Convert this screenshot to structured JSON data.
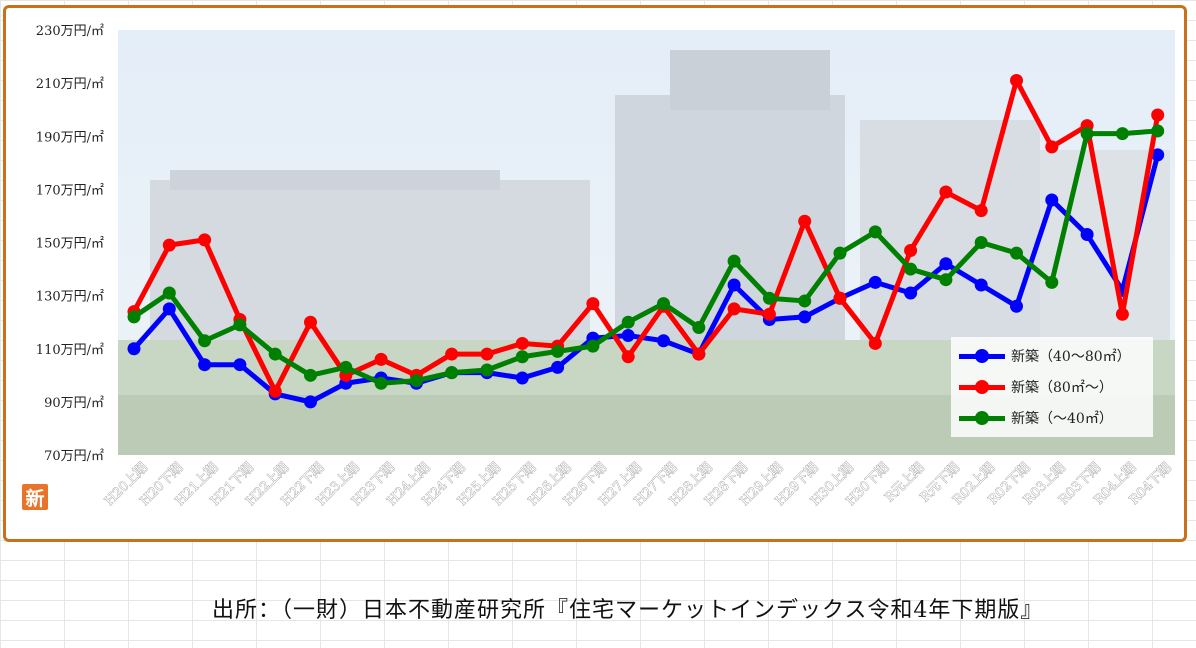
{
  "source_text": "出所：（一財）日本不動産研究所『住宅マーケットインデックス令和4年下期版』",
  "badge_text": "新",
  "chart_data": {
    "type": "line",
    "ylim": [
      70,
      230
    ],
    "yticks": [
      "70万円/㎡",
      "90万円/㎡",
      "110万円/㎡",
      "130万円/㎡",
      "150万円/㎡",
      "170万円/㎡",
      "190万円/㎡",
      "210万円/㎡",
      "230万円/㎡"
    ],
    "ytick_values": [
      70,
      90,
      110,
      130,
      150,
      170,
      190,
      210,
      230
    ],
    "categories": [
      "H20上期",
      "H20下期",
      "H21上期",
      "H21下期",
      "H22上期",
      "H22下期",
      "H23上期",
      "H23下期",
      "H24上期",
      "H24下期",
      "H25上期",
      "H25下期",
      "H26上期",
      "H26下期",
      "H27上期",
      "H27下期",
      "H28上期",
      "H28下期",
      "H29上期",
      "H29下期",
      "H30上期",
      "H30下期",
      "R元上期",
      "R元下期",
      "R02上期",
      "R02下期",
      "R03上期",
      "R03下期",
      "R04上期",
      "R04下期"
    ],
    "legend_position": "bottom-right",
    "grid": false,
    "series": [
      {
        "name": "新築（40～80㎡）",
        "color": "#0000ff",
        "values": [
          110,
          125,
          104,
          104,
          93,
          90,
          97,
          99,
          97,
          101,
          101,
          99,
          103,
          114,
          115,
          113,
          108,
          134,
          121,
          122,
          129,
          135,
          131,
          142,
          134,
          126,
          166,
          153,
          132,
          183
        ]
      },
      {
        "name": "新築（80㎡～）",
        "color": "#ff0000",
        "values": [
          124,
          149,
          151,
          121,
          94,
          120,
          100,
          106,
          100,
          108,
          108,
          112,
          111,
          127,
          107,
          126,
          108,
          125,
          123,
          158,
          129,
          112,
          147,
          169,
          162,
          211,
          186,
          194,
          123,
          198
        ]
      },
      {
        "name": "新築（～40㎡）",
        "color": "#008000",
        "values": [
          122,
          131,
          113,
          119,
          108,
          100,
          103,
          97,
          98,
          101,
          102,
          107,
          109,
          111,
          120,
          127,
          118,
          143,
          129,
          128,
          146,
          154,
          140,
          136,
          150,
          146,
          135,
          191,
          191,
          192
        ]
      }
    ]
  }
}
